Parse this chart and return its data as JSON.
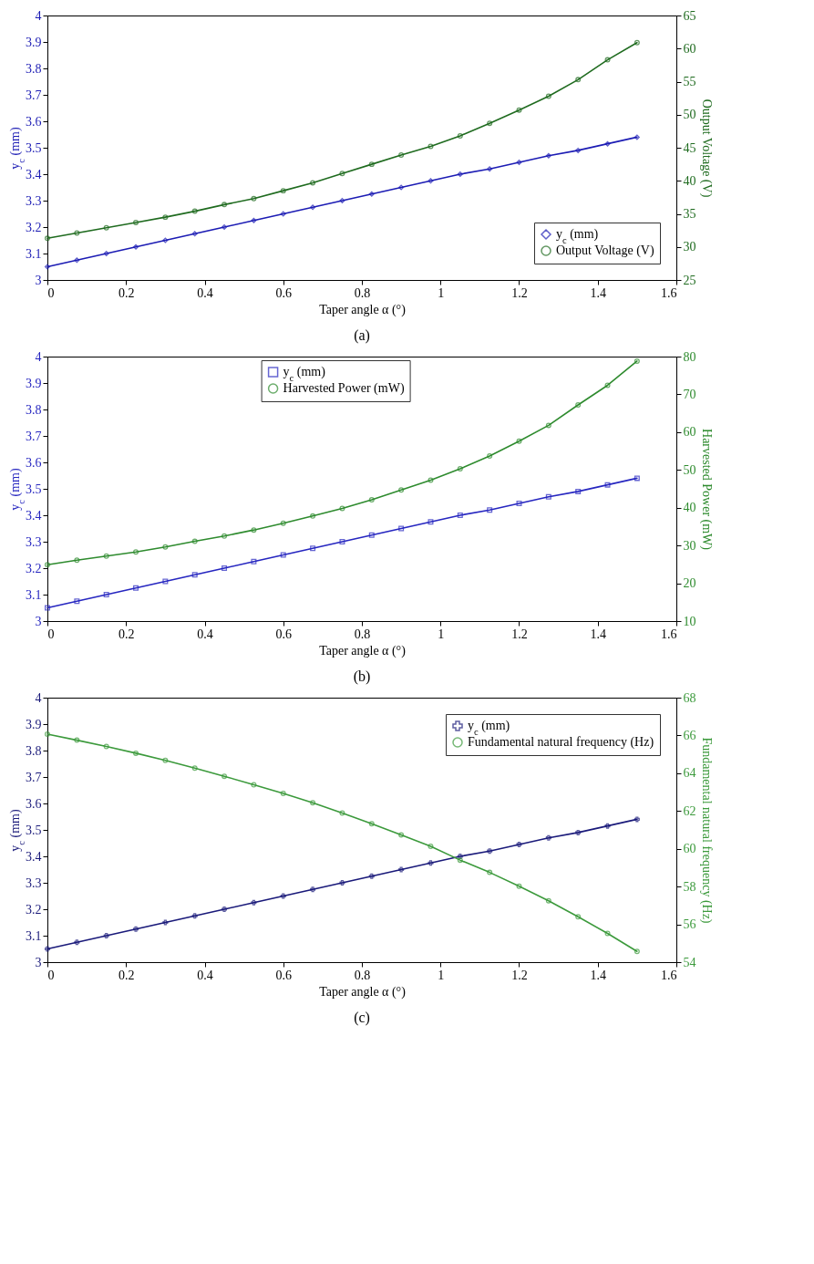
{
  "chart_data": [
    {
      "type": "line",
      "xlabel": "Taper angle α (°)",
      "ylabel": "y$_{c}$ (mm)",
      "y2label": "Output Voltage (V)",
      "annotations": [
        "(a)"
      ],
      "legend": "bottom right",
      "grid": false,
      "x": [
        0,
        0.075,
        0.15,
        0.225,
        0.3,
        0.375,
        0.45,
        0.525,
        0.6,
        0.675,
        0.75,
        0.825,
        0.9,
        0.975,
        1.05,
        1.125,
        1.2,
        1.275,
        1.35,
        1.425,
        1.5
      ],
      "xlim": [
        0,
        1.6
      ],
      "xticks": [
        0,
        0.2,
        0.4,
        0.6,
        0.8,
        1,
        1.2,
        1.4,
        1.6
      ],
      "ylim": [
        3,
        4
      ],
      "yticks": [
        3,
        3.1,
        3.2,
        3.3,
        3.4,
        3.5,
        3.6,
        3.7,
        3.8,
        3.9,
        4
      ],
      "y2lim": [
        25,
        65
      ],
      "y2ticks": [
        25,
        30,
        35,
        40,
        45,
        50,
        55,
        60,
        65
      ],
      "series": [
        {
          "name": "y$_{c}$ (mm)",
          "color": "#1c1cb4",
          "marker": "diamond",
          "values": [
            3.05,
            3.075,
            3.1,
            3.125,
            3.15,
            3.175,
            3.2,
            3.225,
            3.25,
            3.275,
            3.3,
            3.325,
            3.35,
            3.375,
            3.4,
            3.42,
            3.445,
            3.47,
            3.49,
            3.515,
            3.54
          ]
        },
        {
          "name": "Output Voltage (V)",
          "color": "#1f6b1f",
          "marker": "circle",
          "axis": "y2",
          "values": [
            31.3,
            32.1,
            32.9,
            33.7,
            34.5,
            35.4,
            36.4,
            37.3,
            38.5,
            39.7,
            41.1,
            42.5,
            43.9,
            45.2,
            46.8,
            48.7,
            50.7,
            52.8,
            55.3,
            58.3,
            60.9
          ]
        }
      ]
    },
    {
      "type": "line",
      "xlabel": "Taper angle α (°)",
      "ylabel": "y$_{c}$ (mm)",
      "y2label": "Harvested Power (mW)",
      "annotations": [
        "(b)"
      ],
      "legend": "top",
      "grid": false,
      "x": [
        0,
        0.075,
        0.15,
        0.225,
        0.3,
        0.375,
        0.45,
        0.525,
        0.6,
        0.675,
        0.75,
        0.825,
        0.9,
        0.975,
        1.05,
        1.125,
        1.2,
        1.275,
        1.35,
        1.425,
        1.5
      ],
      "xlim": [
        0,
        1.6
      ],
      "xticks": [
        0,
        0.2,
        0.4,
        0.6,
        0.8,
        1,
        1.2,
        1.4,
        1.6
      ],
      "ylim": [
        3,
        4
      ],
      "yticks": [
        3,
        3.1,
        3.2,
        3.3,
        3.4,
        3.5,
        3.6,
        3.7,
        3.8,
        3.9,
        4
      ],
      "y2lim": [
        10,
        80
      ],
      "y2ticks": [
        10,
        20,
        30,
        40,
        50,
        60,
        70,
        80
      ],
      "series": [
        {
          "name": "y$_{c}$ (mm)",
          "color": "#2626c0",
          "marker": "square",
          "values": [
            3.05,
            3.075,
            3.1,
            3.125,
            3.15,
            3.175,
            3.2,
            3.225,
            3.25,
            3.275,
            3.3,
            3.325,
            3.35,
            3.375,
            3.4,
            3.42,
            3.445,
            3.47,
            3.49,
            3.515,
            3.54
          ]
        },
        {
          "name": "Harvested Power (mW)",
          "color": "#2e8b2e",
          "marker": "circle",
          "axis": "y2",
          "values": [
            24.9,
            26.1,
            27.2,
            28.3,
            29.6,
            31.1,
            32.5,
            34.1,
            35.9,
            37.8,
            39.8,
            42.1,
            44.7,
            47.3,
            50.3,
            53.7,
            57.6,
            61.8,
            67.2,
            72.4,
            78.8
          ]
        }
      ]
    },
    {
      "type": "line",
      "xlabel": "Taper angle α (°)",
      "ylabel": "y$_{c}$ (mm)",
      "y2label": "Fundamental natural frequency (Hz)",
      "annotations": [
        "(c)"
      ],
      "legend": "top right",
      "grid": false,
      "x": [
        0,
        0.075,
        0.15,
        0.225,
        0.3,
        0.375,
        0.45,
        0.525,
        0.6,
        0.675,
        0.75,
        0.825,
        0.9,
        0.975,
        1.05,
        1.125,
        1.2,
        1.275,
        1.35,
        1.425,
        1.5
      ],
      "xlim": [
        0,
        1.6
      ],
      "xticks": [
        0,
        0.2,
        0.4,
        0.6,
        0.8,
        1,
        1.2,
        1.4,
        1.6
      ],
      "ylim": [
        3,
        4
      ],
      "yticks": [
        3,
        3.1,
        3.2,
        3.3,
        3.4,
        3.5,
        3.6,
        3.7,
        3.8,
        3.9,
        4
      ],
      "y2lim": [
        54,
        68
      ],
      "y2ticks": [
        54,
        56,
        58,
        60,
        62,
        64,
        66,
        68
      ],
      "series": [
        {
          "name": "y$_{c}$ (mm)",
          "color": "#1a1a7a",
          "marker": "cross",
          "values": [
            3.05,
            3.075,
            3.1,
            3.125,
            3.15,
            3.175,
            3.2,
            3.225,
            3.25,
            3.275,
            3.3,
            3.325,
            3.35,
            3.375,
            3.4,
            3.42,
            3.445,
            3.47,
            3.49,
            3.515,
            3.54
          ]
        },
        {
          "name": "Fundamental natural frequency (Hz)",
          "color": "#3c9a3c",
          "marker": "circle",
          "axis": "y2",
          "values": [
            66.07,
            65.75,
            65.42,
            65.06,
            64.68,
            64.27,
            63.84,
            63.39,
            62.93,
            62.44,
            61.89,
            61.33,
            60.74,
            60.13,
            59.4,
            58.75,
            58.02,
            57.25,
            56.4,
            55.52,
            54.57
          ]
        }
      ]
    }
  ]
}
